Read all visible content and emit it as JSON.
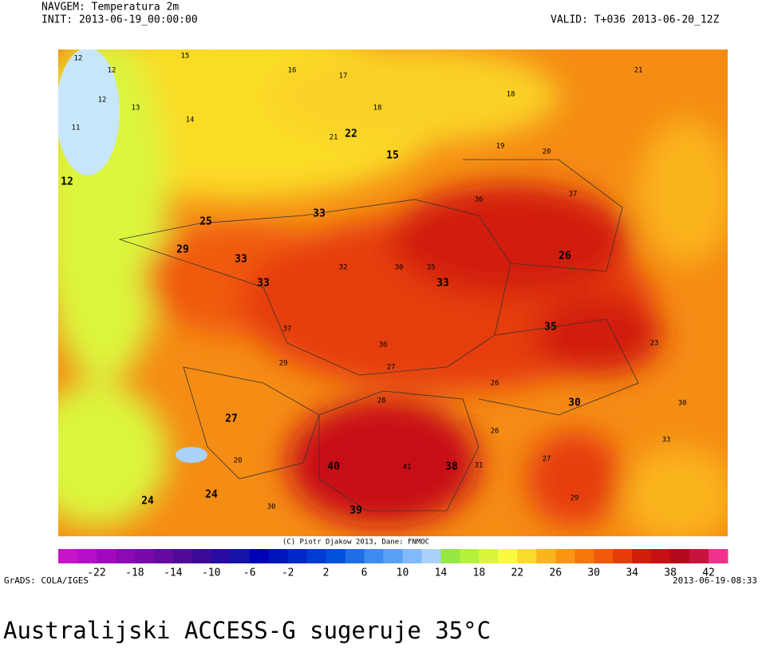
{
  "header": {
    "title": "NAVGEM: Temperatura 2m",
    "init": "INIT: 2013-06-19_00:00:00",
    "valid": "VALID: T+036 2013-06-20_12Z"
  },
  "map": {
    "credit": "(C) Piotr Djakow 2013, Dane: FNMOC",
    "contour_labels": [
      "12",
      "12",
      "11",
      "12",
      "13",
      "14",
      "15",
      "16",
      "17",
      "18",
      "18",
      "19",
      "20",
      "21",
      "21",
      "22",
      "24",
      "27",
      "15",
      "12",
      "25",
      "29",
      "33",
      "32",
      "30",
      "33",
      "33",
      "37",
      "35",
      "36",
      "26",
      "28",
      "29",
      "27",
      "37",
      "33",
      "35",
      "30",
      "39",
      "40",
      "41",
      "38",
      "36",
      "24",
      "30",
      "31",
      "20",
      "23",
      "26",
      "33",
      "30",
      "27",
      "26",
      "29"
    ]
  },
  "colorbar": {
    "colors": [
      "#c814c8",
      "#b40fc8",
      "#a00abe",
      "#8c0ab4",
      "#780aaa",
      "#640aa0",
      "#500a96",
      "#3c0a96",
      "#280aa0",
      "#1414aa",
      "#0000b4",
      "#0014be",
      "#0028c8",
      "#003cd2",
      "#0050dc",
      "#1e6ee6",
      "#3c8cf0",
      "#5aa0f5",
      "#82b9fa",
      "#aad2fa",
      "#96e646",
      "#b4f03c",
      "#dcf53c",
      "#fafa3c",
      "#fadc28",
      "#fab41e",
      "#fa9614",
      "#f5780a",
      "#f05a0a",
      "#e63c0a",
      "#d21e0a",
      "#c80f14",
      "#b40a1e",
      "#c8143c",
      "#f0328c"
    ],
    "ticks": [
      -22,
      -18,
      -14,
      -10,
      -6,
      -2,
      2,
      6,
      10,
      14,
      18,
      22,
      26,
      30,
      34,
      38,
      42
    ]
  },
  "footer": {
    "left": "GrADS: COLA/IGES",
    "right": "2013-06-19-08:33"
  },
  "caption": "Australijski ACCESS-G sugeruje 35°C"
}
